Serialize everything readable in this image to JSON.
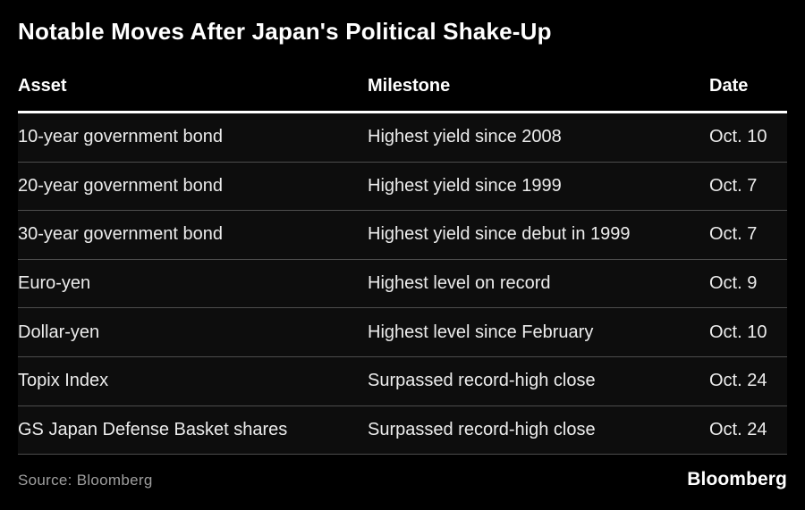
{
  "chart_data": {
    "type": "table",
    "title": "Notable Moves After Japan's Political Shake-Up",
    "columns": [
      "Asset",
      "Milestone",
      "Date"
    ],
    "rows": [
      {
        "asset": "10-year government bond",
        "milestone": "Highest yield since 2008",
        "date": "Oct. 10"
      },
      {
        "asset": "20-year government bond",
        "milestone": "Highest yield since 1999",
        "date": "Oct. 7"
      },
      {
        "asset": "30-year government bond",
        "milestone": "Highest yield since debut in 1999",
        "date": "Oct. 7"
      },
      {
        "asset": "Euro-yen",
        "milestone": "Highest level on record",
        "date": "Oct. 9"
      },
      {
        "asset": "Dollar-yen",
        "milestone": "Highest level since February",
        "date": "Oct. 10"
      },
      {
        "asset": "Topix Index",
        "milestone": "Surpassed record-high close",
        "date": "Oct. 24"
      },
      {
        "asset": "GS Japan Defense Basket shares",
        "milestone": "Surpassed record-high close",
        "date": "Oct. 24"
      }
    ],
    "source": "Source: Bloomberg",
    "brand": "Bloomberg",
    "legend": false,
    "grid": "horizontal-dividers"
  },
  "colors": {
    "background": "#000000",
    "row_background": "#0d0d0d",
    "title_text": "#ffffff",
    "header_text": "#ffffff",
    "body_text": "#ececec",
    "divider": "#4d4d4d",
    "header_rule": "#ffffff",
    "source_text": "#9e9e9e",
    "brand_text": "#ffffff"
  }
}
